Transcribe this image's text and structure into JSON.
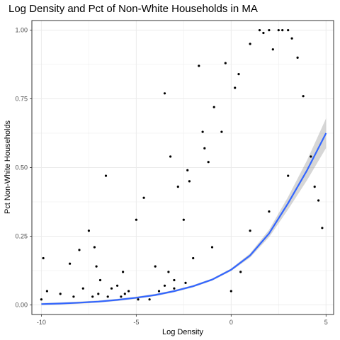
{
  "chart_data": {
    "type": "scatter",
    "title": "Log Density and Pct of Non-White Households in MA",
    "xlabel": "Log Density",
    "ylabel": "Pct Non-White Households",
    "xlim": [
      -10.5,
      5.4
    ],
    "ylim": [
      -0.035,
      1.035
    ],
    "xticks": [
      -10,
      -5,
      0,
      5
    ],
    "xtick_labels": [
      "-10",
      "-5",
      "0",
      "5"
    ],
    "yticks": [
      0,
      0.25,
      0.5,
      0.75,
      1.0
    ],
    "ytick_labels": [
      "0.00",
      "0.25",
      "0.50",
      "0.75",
      "1.00"
    ],
    "grid": true,
    "legend": "none",
    "colors": {
      "points": "#000000",
      "smooth_line": "#3366ff",
      "confidence_band": "#999999",
      "panel_border": "#333333",
      "grid": "#ebebeb"
    },
    "series": [
      {
        "kind": "points",
        "x": [
          -10.0,
          -9.9,
          -9.7,
          -9.0,
          -8.5,
          -8.3,
          -8.0,
          -7.8,
          -7.5,
          -7.3,
          -7.2,
          -7.1,
          -7.0,
          -6.9,
          -6.6,
          -6.5,
          -6.3,
          -6.0,
          -5.8,
          -5.7,
          -5.6,
          -5.4,
          -5.0,
          -4.9,
          -4.6,
          -4.3,
          -4.0,
          -3.8,
          -3.5,
          -3.5,
          -3.3,
          -3.2,
          -3.0,
          -2.8,
          -2.5,
          -2.4,
          -2.3,
          -2.2,
          -1.7,
          -1.5,
          -1.4,
          -1.2,
          -0.9,
          -0.5,
          -0.3,
          0.2,
          0.4,
          1.0,
          1.5,
          1.7,
          2.0,
          2.2,
          2.5,
          2.7,
          3.0,
          3.2,
          3.5,
          3.8,
          4.2,
          4.4,
          4.6,
          4.8,
          -2.0,
          -1.0,
          0.0,
          0.5,
          1.0,
          2.0,
          3.0,
          -3.0
        ],
        "y": [
          0.02,
          0.17,
          0.05,
          0.04,
          0.15,
          0.03,
          0.2,
          0.06,
          0.27,
          0.03,
          0.21,
          0.14,
          0.04,
          0.09,
          0.47,
          0.03,
          0.06,
          0.07,
          0.03,
          0.12,
          0.04,
          0.05,
          0.31,
          0.02,
          0.39,
          0.02,
          0.14,
          0.05,
          0.77,
          0.07,
          0.12,
          0.54,
          0.06,
          0.43,
          0.31,
          0.08,
          0.49,
          0.45,
          0.87,
          0.63,
          0.57,
          0.52,
          0.72,
          0.63,
          0.88,
          0.79,
          0.84,
          0.95,
          1.0,
          0.99,
          1.0,
          0.93,
          1.0,
          1.0,
          1.0,
          0.97,
          0.9,
          0.76,
          0.54,
          0.43,
          0.38,
          0.28,
          0.17,
          0.21,
          0.05,
          0.12,
          0.27,
          0.34,
          0.47,
          0.09
        ]
      },
      {
        "kind": "smooth",
        "x": [
          -10,
          -9,
          -8,
          -7,
          -6,
          -5,
          -4,
          -3,
          -2,
          -1,
          0,
          1,
          2,
          3,
          4,
          5
        ],
        "y": [
          0.003,
          0.005,
          0.008,
          0.012,
          0.018,
          0.026,
          0.036,
          0.05,
          0.068,
          0.092,
          0.128,
          0.18,
          0.26,
          0.37,
          0.49,
          0.625
        ]
      }
    ]
  }
}
